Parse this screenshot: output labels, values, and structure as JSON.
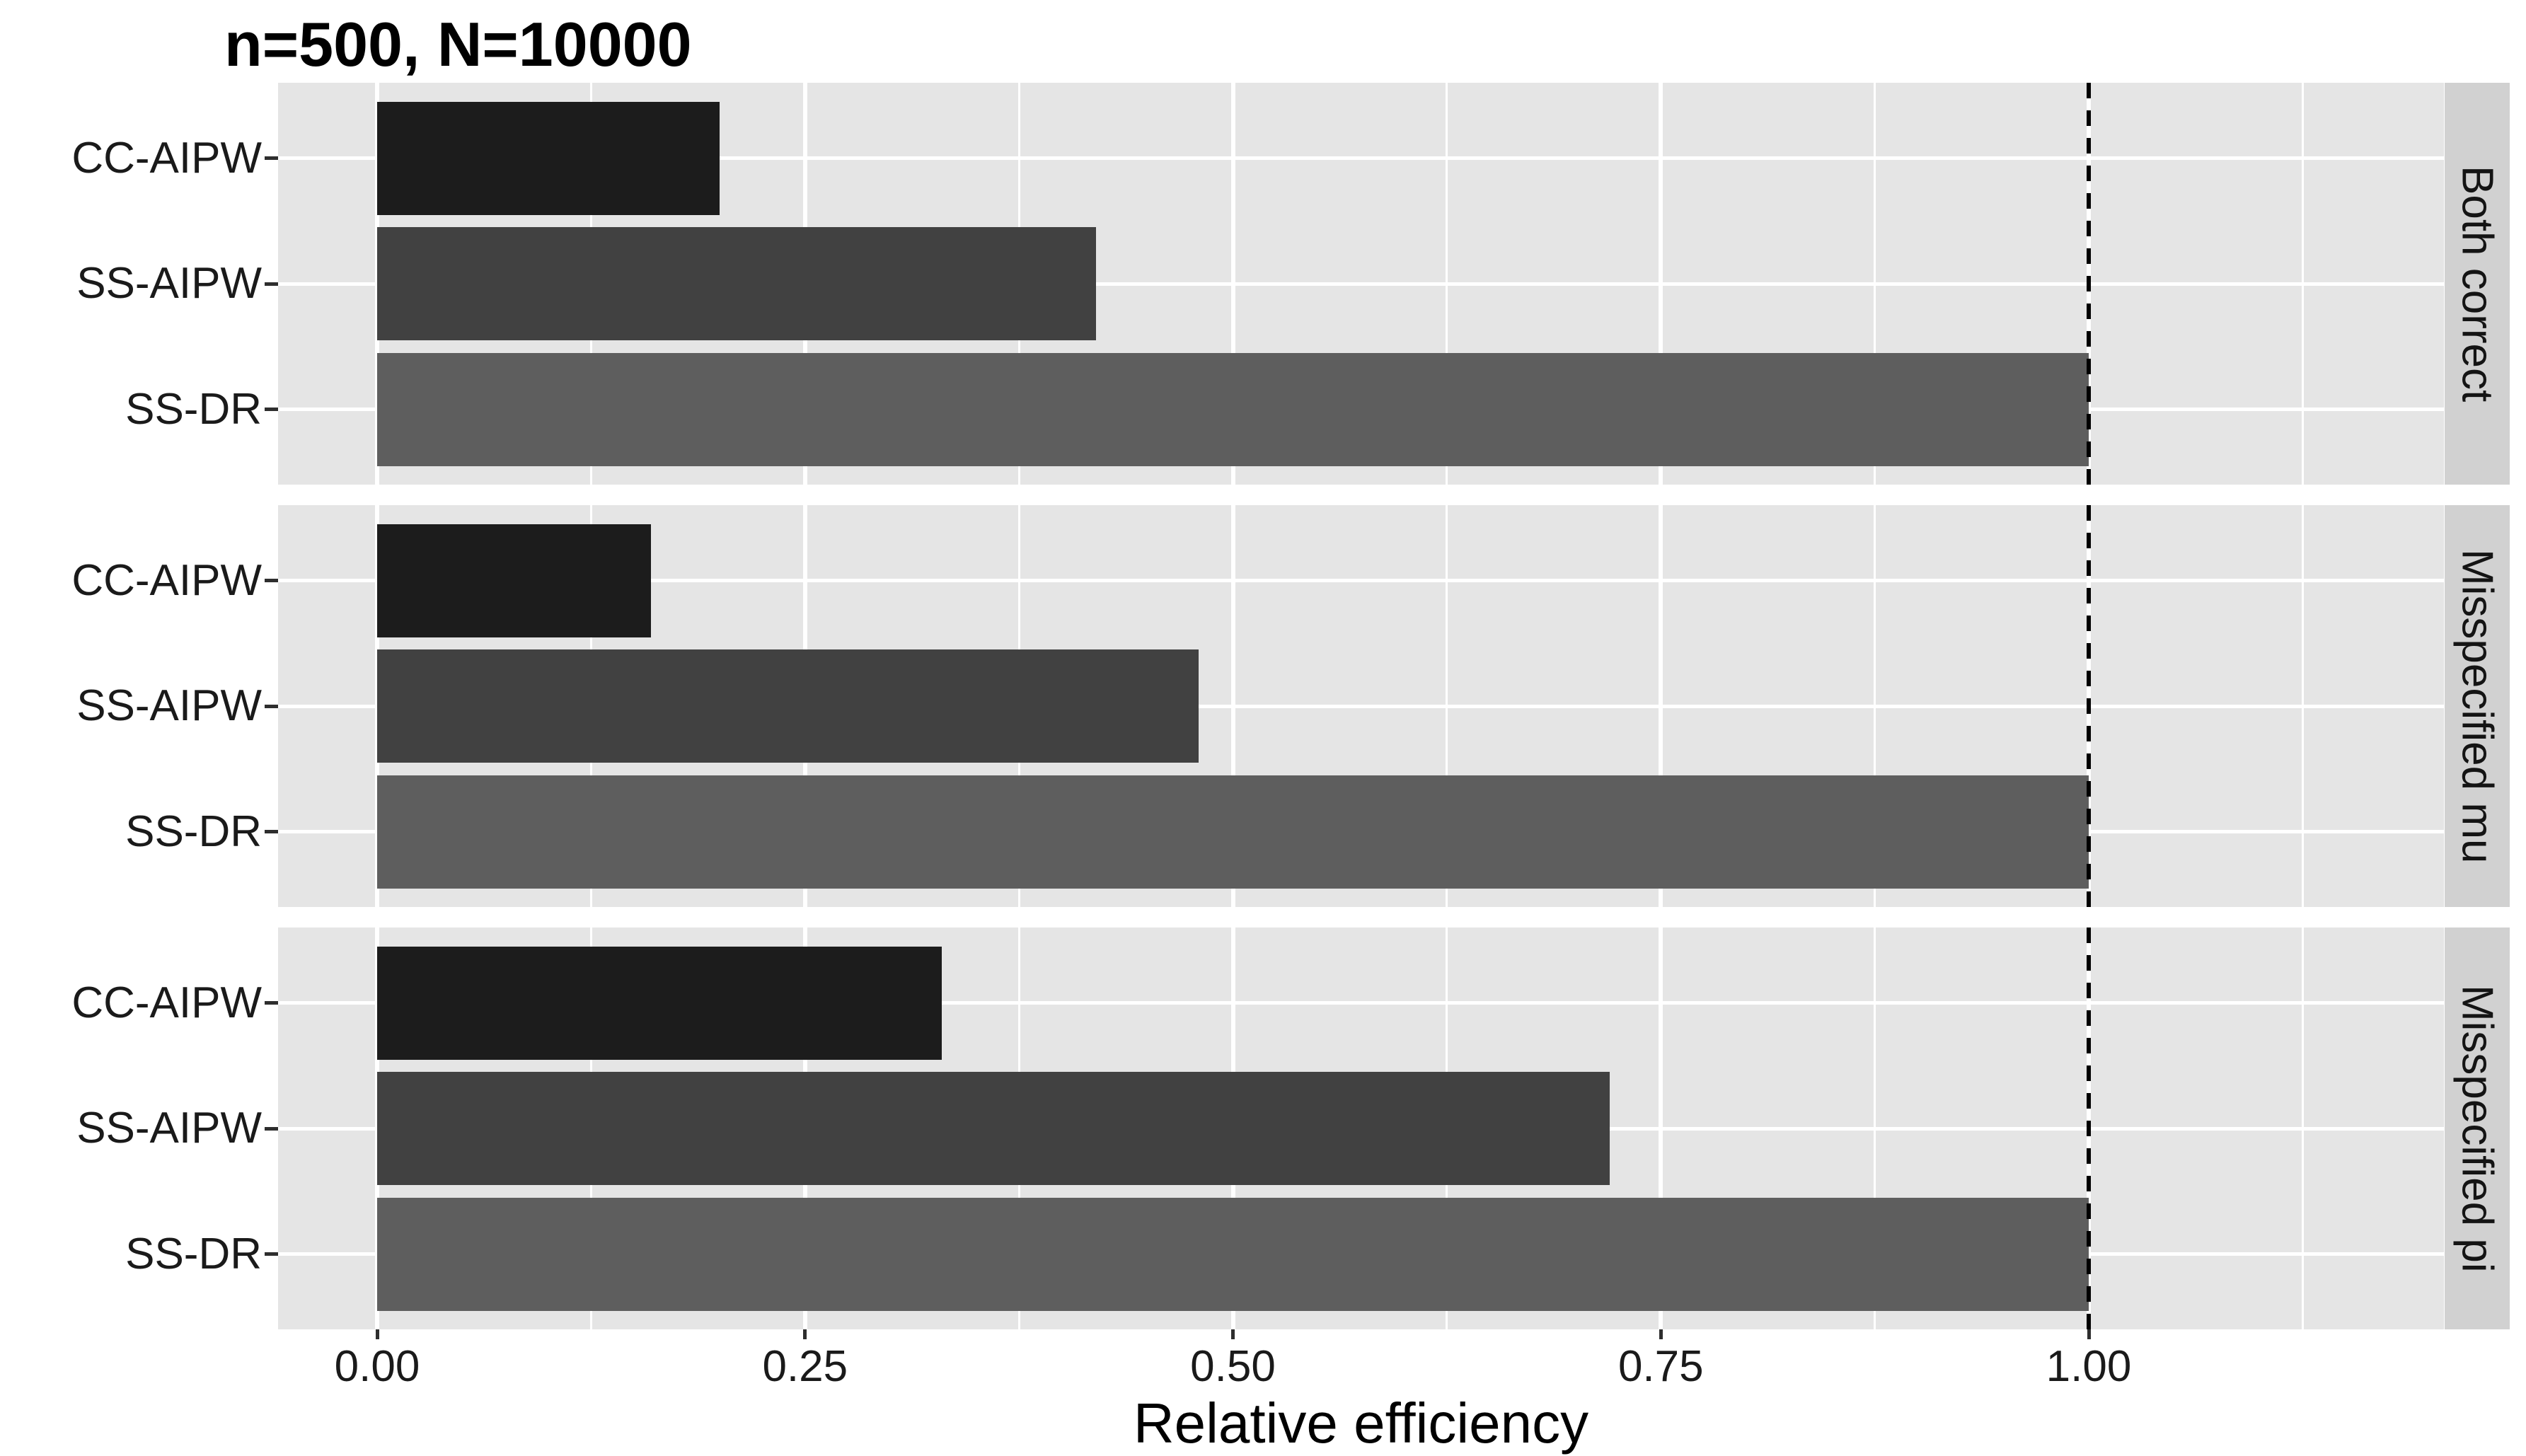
{
  "title": "n=500, N=10000",
  "x_axis": {
    "label": "Relative efficiency",
    "tick_labels": [
      "0.00",
      "0.25",
      "0.50",
      "0.75",
      "1.00"
    ]
  },
  "chart_data": {
    "type": "bar",
    "orientation": "horizontal",
    "title": "n=500, N=10000",
    "xlabel": "Relative efficiency",
    "categories": [
      "CC-AIPW",
      "SS-AIPW",
      "SS-DR"
    ],
    "facets": [
      {
        "label": "Both correct",
        "values": [
          0.2,
          0.42,
          1.0
        ]
      },
      {
        "label": "Misspecified mu",
        "values": [
          0.16,
          0.48,
          1.0
        ]
      },
      {
        "label": "Misspecified pi",
        "values": [
          0.33,
          0.72,
          1.0
        ]
      }
    ],
    "x_ticks": [
      0,
      0.25,
      0.5,
      0.75,
      1.0
    ],
    "x_tick_labels": [
      "0.00",
      "0.25",
      "0.50",
      "0.75",
      "1.00"
    ],
    "x_minor_ticks": [
      0.125,
      0.375,
      0.625,
      0.875,
      1.125
    ],
    "xlim": [
      -0.058,
      1.207
    ],
    "reference_line_x": 1.0,
    "legend_position": "none",
    "grid": "white major/minor gridlines on gray panels",
    "colors": {
      "bars": [
        "#1C1C1C",
        "#414141",
        "#5E5E5E"
      ],
      "panel_bg": "#E5E5E5",
      "strip_bg": "#D1D1D1",
      "grid": "#FFFFFF",
      "reference_line": "#000000",
      "text": "#1A1A1A"
    }
  }
}
